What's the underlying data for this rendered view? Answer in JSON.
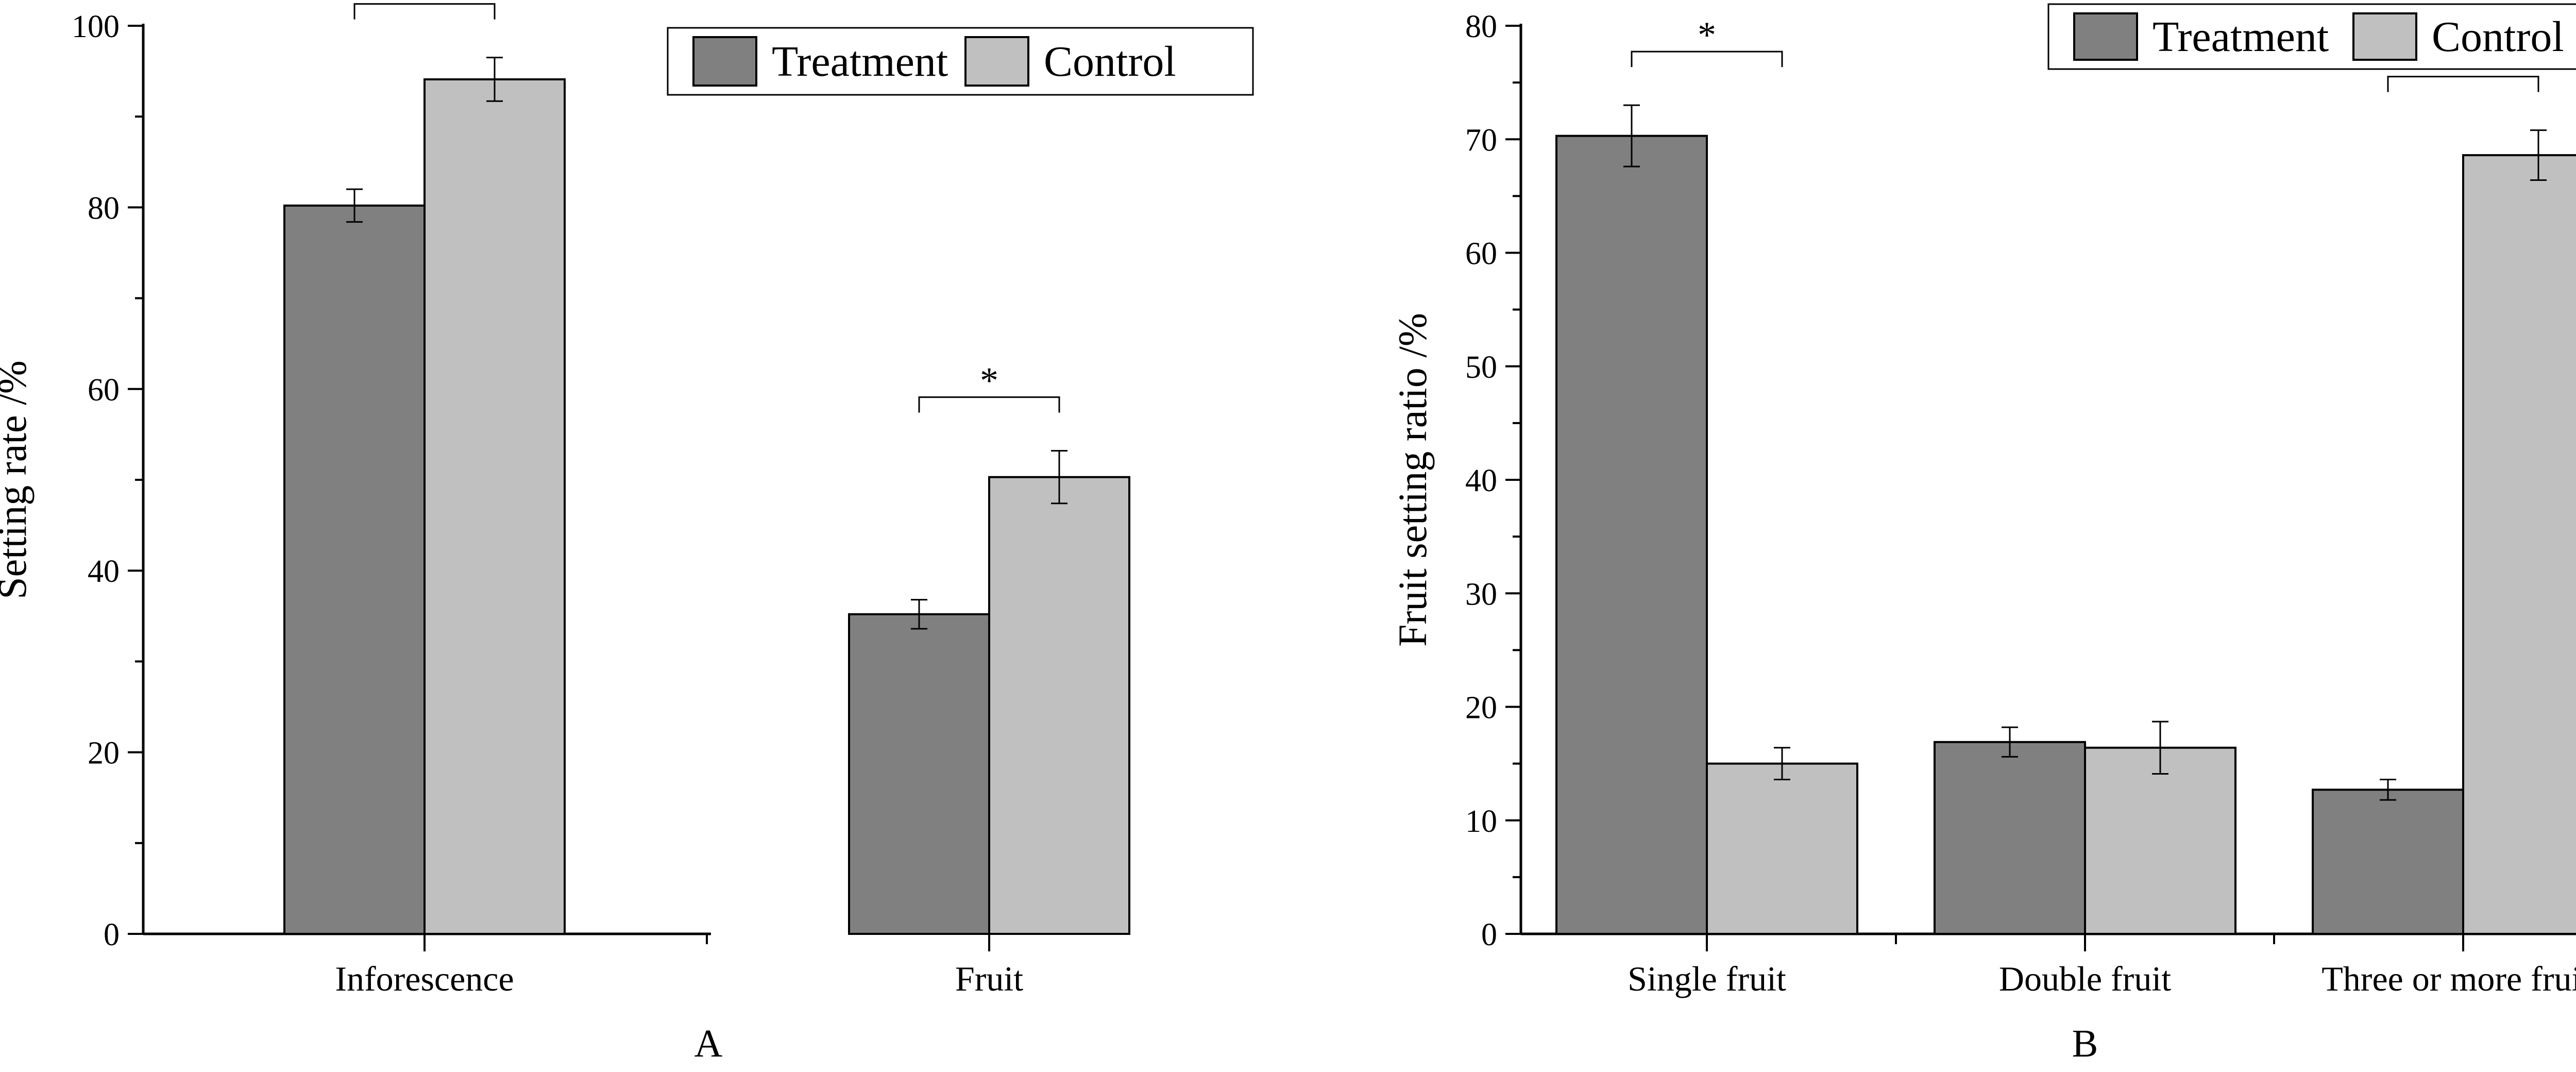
{
  "chart_data": [
    {
      "panel": "A",
      "type": "bar",
      "ylabel": "Setting rate /%",
      "xlabel": "",
      "ylim": [
        0,
        100
      ],
      "yticks": [
        0,
        20,
        40,
        60,
        80,
        100
      ],
      "categories": [
        "Inforescence",
        "Fruit"
      ],
      "series": [
        {
          "name": "Treatment",
          "color": "#808080",
          "values": [
            80.2,
            35.2
          ],
          "errors": [
            1.8,
            1.6
          ]
        },
        {
          "name": "Control",
          "color": "#c0c0c0",
          "values": [
            94.1,
            50.3
          ],
          "errors": [
            2.4,
            2.9
          ]
        }
      ],
      "significance": [
        {
          "category": 0,
          "label": "*"
        },
        {
          "category": 1,
          "label": "*"
        }
      ],
      "legend": "top-right"
    },
    {
      "panel": "B",
      "type": "bar",
      "ylabel": "Fruit setting ratio /%",
      "xlabel": "",
      "ylim": [
        0,
        80
      ],
      "yticks": [
        0,
        10,
        20,
        30,
        40,
        50,
        60,
        70,
        80
      ],
      "categories": [
        "Single fruit",
        "Double fruit",
        "Three or more fruits"
      ],
      "series": [
        {
          "name": "Treatment",
          "color": "#808080",
          "values": [
            70.3,
            16.9,
            12.7
          ],
          "errors": [
            2.7,
            1.3,
            0.9
          ]
        },
        {
          "name": "Control",
          "color": "#c0c0c0",
          "values": [
            15.0,
            16.4,
            68.6
          ],
          "errors": [
            1.4,
            2.3,
            2.2
          ]
        }
      ],
      "significance": [
        {
          "category": 0,
          "label": "*"
        },
        {
          "category": 2,
          "label": "*"
        }
      ],
      "legend": "top-right"
    }
  ]
}
